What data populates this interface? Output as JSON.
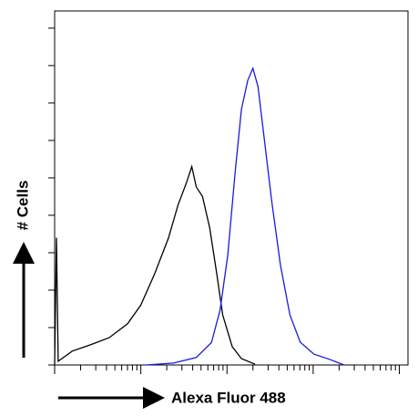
{
  "chart_data": {
    "type": "line",
    "x_label": "Alexa Fluor 488",
    "y_label": "# Cells",
    "xscale": "log",
    "xlim": [
      1,
      12600
    ],
    "xticks": [
      1,
      10,
      100,
      1000,
      10000
    ],
    "ylim": [
      0,
      9.46
    ],
    "yticks": [
      0,
      1,
      2,
      3,
      4,
      5,
      6,
      7,
      8,
      9
    ],
    "series": [
      {
        "color": "#000000",
        "x": [
          1,
          1.05,
          1.1,
          1.6,
          2.6,
          4.3,
          7,
          10,
          14.5,
          21,
          27,
          34,
          39,
          44,
          52,
          63,
          76,
          89,
          115,
          147,
          212
        ],
        "values": [
          0,
          3.4,
          0.1,
          0.37,
          0.54,
          0.73,
          1.1,
          1.6,
          2.44,
          3.4,
          4.27,
          4.88,
          5.3,
          4.76,
          4.5,
          3.66,
          2.44,
          1.34,
          0.49,
          0.17,
          0.02
        ]
      },
      {
        "color": "#1a1adc",
        "x": [
          11.4,
          24,
          44,
          66,
          83,
          102,
          124,
          147,
          174,
          200,
          229,
          269,
          330,
          417,
          537,
          708,
          1020,
          1550,
          2290
        ],
        "values": [
          0,
          0.05,
          0.2,
          0.6,
          1.46,
          2.93,
          5.12,
          6.83,
          7.6,
          7.93,
          7.44,
          6.1,
          4.39,
          2.68,
          1.34,
          0.61,
          0.29,
          0.15,
          0
        ]
      }
    ]
  }
}
